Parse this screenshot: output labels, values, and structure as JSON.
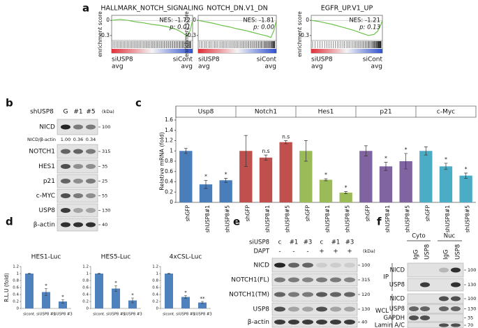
{
  "panel_labels": [
    "a",
    "b",
    "c",
    "d",
    "e",
    "f"
  ],
  "chart_data": [
    {
      "type": "gsea",
      "title": "HALLMARK_NOTCH_SIGNALING",
      "ylabel": "enrichment score",
      "annotations": [
        "NES: -1.72",
        "p: 0.01"
      ],
      "left_label": [
        "siUSP8",
        "avg"
      ],
      "right_label": [
        "siCont",
        "avg"
      ],
      "color": "#6cc24a",
      "x": [
        0,
        10,
        20,
        30,
        40,
        50,
        60,
        70,
        80,
        88,
        93,
        97,
        100
      ],
      "values": [
        0,
        0.02,
        0,
        -0.03,
        -0.05,
        -0.08,
        -0.1,
        -0.13,
        -0.18,
        -0.25,
        -0.32,
        -0.2,
        0
      ],
      "xlim": [
        0,
        100
      ],
      "ylim": [
        -0.4,
        0.1
      ],
      "yticks": [
        0,
        -0.3
      ]
    },
    {
      "type": "gsea",
      "title": "NOTCH_DN.V1_DN",
      "ylabel": "enrichment score",
      "annotations": [
        "NES: -1.81",
        "p: 0.00"
      ],
      "left_label": [
        "siUSP8",
        "avg"
      ],
      "right_label": [
        "siCont",
        "avg"
      ],
      "color": "#6cc24a",
      "x": [
        0,
        10,
        20,
        30,
        40,
        50,
        60,
        70,
        80,
        88,
        93,
        97,
        100
      ],
      "values": [
        0,
        -0.03,
        -0.06,
        -0.1,
        -0.13,
        -0.17,
        -0.2,
        -0.24,
        -0.28,
        -0.31,
        -0.34,
        -0.2,
        0
      ],
      "xlim": [
        0,
        100
      ],
      "ylim": [
        -0.4,
        0.1
      ],
      "yticks": [
        0,
        -0.3
      ]
    },
    {
      "type": "gsea",
      "title": "EGFR_UP.V1_UP",
      "ylabel": "enrichment score",
      "annotations": [
        "NES: -1.21",
        "p: 0.13"
      ],
      "left_label": [
        "siUSP8",
        "avg"
      ],
      "right_label": [
        "siCont",
        "avg"
      ],
      "color": "#6cc24a",
      "x": [
        0,
        10,
        20,
        30,
        40,
        50,
        60,
        70,
        80,
        88,
        93,
        97,
        100
      ],
      "values": [
        0,
        -0.02,
        -0.05,
        -0.08,
        -0.12,
        -0.16,
        -0.2,
        -0.25,
        -0.3,
        -0.28,
        -0.22,
        -0.12,
        0
      ],
      "xlim": [
        0,
        100
      ],
      "ylim": [
        -0.4,
        0.1
      ],
      "yticks": [
        0,
        -0.3
      ]
    },
    {
      "type": "grouped_bar",
      "ylabel": "Relative mRNA (fold)",
      "categories": [
        "shGFP",
        "shUSP8#1",
        "shUSP8#5"
      ],
      "ylim": [
        0,
        1.6
      ],
      "yticks": [
        0,
        0.2,
        0.4,
        0.6,
        0.8,
        1,
        1.2,
        1.4,
        1.6
      ],
      "series": [
        {
          "name": "Usp8",
          "color": "#4a7ebb",
          "values": [
            1.0,
            0.35,
            0.43
          ],
          "errors": [
            0.05,
            0.08,
            0.04
          ],
          "labels": [
            null,
            "*",
            "*"
          ]
        },
        {
          "name": "Notch1",
          "color": "#c0504d",
          "values": [
            1.0,
            0.87,
            1.17
          ],
          "errors": [
            0.3,
            0.05,
            0.03
          ],
          "labels": [
            null,
            "n.s",
            "n.s"
          ]
        },
        {
          "name": "Hes1",
          "color": "#9bbb59",
          "values": [
            1.0,
            0.44,
            0.19
          ],
          "errors": [
            0.2,
            0.02,
            0.02
          ],
          "labels": [
            null,
            "*",
            "*"
          ]
        },
        {
          "name": "p21",
          "color": "#8064a2",
          "values": [
            1.0,
            0.7,
            0.8
          ],
          "errors": [
            0.1,
            0.08,
            0.15
          ],
          "labels": [
            null,
            "*",
            "*"
          ]
        },
        {
          "name": "c-Myc",
          "color": "#4bacc6",
          "values": [
            1.0,
            0.7,
            0.52
          ],
          "errors": [
            0.08,
            0.06,
            0.05
          ],
          "labels": [
            null,
            "*",
            "*"
          ]
        }
      ]
    },
    {
      "type": "bar",
      "title": "HES1-Luc",
      "ylabel": "R.L.U (fold)",
      "categories": [
        "sicont.",
        "siUSP8 #1",
        "siUSP8 #3"
      ],
      "color": "#4f81bd",
      "values": [
        1.0,
        0.47,
        0.2
      ],
      "errors": [
        0.01,
        0.1,
        0.05
      ],
      "labels": [
        null,
        "*",
        "*"
      ],
      "ylim": [
        0,
        1.2
      ],
      "yticks": [
        0,
        0.2,
        0.4,
        0.6,
        0.8,
        1,
        1.2
      ]
    },
    {
      "type": "bar",
      "title": "HES5-Luc",
      "categories": [
        "sicont.",
        "siUSP8 #1",
        "siUSP8 #3"
      ],
      "color": "#4f81bd",
      "values": [
        1.0,
        0.57,
        0.23
      ],
      "errors": [
        0.01,
        0.08,
        0.07
      ],
      "labels": [
        null,
        "*",
        "*"
      ],
      "ylim": [
        0,
        1.2
      ],
      "yticks": [
        0,
        0.2,
        0.4,
        0.6,
        0.8,
        1,
        1.2
      ]
    },
    {
      "type": "bar",
      "title": "4xCSL-Luc",
      "categories": [
        "sicont.",
        "siUSP8 #1",
        "siUSP8 #3"
      ],
      "color": "#4f81bd",
      "values": [
        1.0,
        0.33,
        0.17
      ],
      "errors": [
        0.01,
        0.04,
        0.03
      ],
      "labels": [
        null,
        "*",
        "**"
      ],
      "ylim": [
        0,
        1.2
      ],
      "yticks": [
        0,
        0.2,
        0.4,
        0.6,
        0.8,
        1,
        1.2
      ]
    }
  ],
  "blots": [
    {
      "title": "shUSP8",
      "lanes": [
        "G",
        "#1",
        "#5"
      ],
      "unit": "(kDa)",
      "rows": [
        {
          "name": "NICD",
          "marker": 100
        },
        {
          "name": "NICD/β-actin",
          "quant": [
            "1.00",
            "0.36",
            "0.34"
          ]
        },
        {
          "name": "NOTCH1",
          "marker": 315
        },
        {
          "name": "HES1",
          "marker": 35
        },
        {
          "name": "p21",
          "marker": 25
        },
        {
          "name": "c-MYC",
          "marker": 55
        },
        {
          "name": "USP8",
          "marker": 130
        },
        {
          "name": "β-actin",
          "marker": 40
        }
      ]
    },
    {
      "title": "siUSP8",
      "lanes": [
        "c",
        "#1",
        "#3",
        "c",
        "#1",
        "#3"
      ],
      "treatment": {
        "name": "DAPT",
        "lanes": [
          "-",
          "-",
          "-",
          "+",
          "+",
          "+"
        ]
      },
      "unit": "(kDa)",
      "rows": [
        {
          "name": "NICD",
          "marker": 100
        },
        {
          "name": "NOTCH1(FL)",
          "marker": 315
        },
        {
          "name": "NOTCH1(TM)",
          "marker": 120
        },
        {
          "name": "USP8",
          "marker": 130
        },
        {
          "name": "β-actin",
          "marker": 40
        }
      ]
    },
    {
      "groups": [
        "Cyto",
        "Nuc"
      ],
      "lanes": [
        "IgG",
        "USP8",
        "IgG",
        "USP8"
      ],
      "sections": [
        {
          "name": "IP",
          "rows": [
            {
              "name": "NICD",
              "marker": 100
            },
            {
              "name": "USP8",
              "marker": 130
            }
          ]
        },
        {
          "name": "WCL",
          "rows": [
            {
              "name": "NICD",
              "marker": 100
            },
            {
              "name": "USP8",
              "marker": 130
            },
            {
              "name": "GAPDH",
              "marker": 35
            },
            {
              "name": "Lamin A/C",
              "marker": 70
            }
          ]
        }
      ]
    }
  ]
}
